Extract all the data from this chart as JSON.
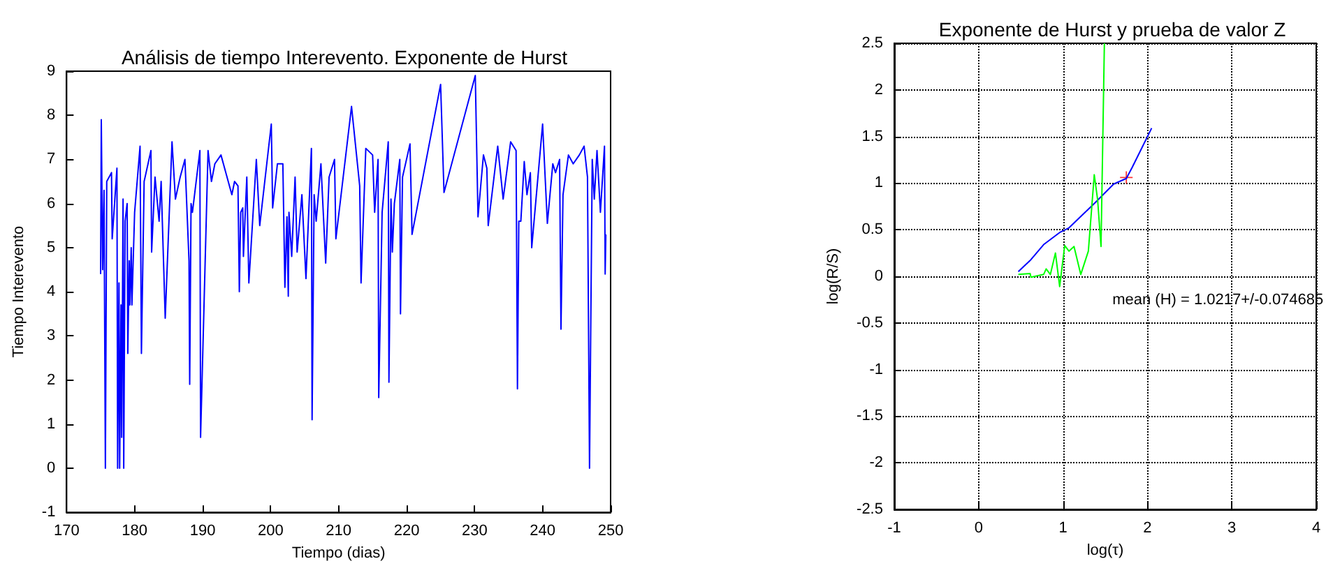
{
  "chart_data": [
    {
      "type": "line",
      "title": "Análisis de tiempo Interevento. Exponente de Hurst",
      "xlabel": "Tiempo (dias)",
      "ylabel": "Tiempo Interevento",
      "xlim": [
        170,
        250
      ],
      "xticks": [
        170,
        180,
        190,
        200,
        210,
        220,
        230,
        240,
        250
      ],
      "ylim": [
        -1,
        9
      ],
      "yticks": [
        -1,
        0,
        1,
        2,
        3,
        4,
        5,
        6,
        7,
        8,
        9
      ],
      "grid": false,
      "series": [
        {
          "color": "#0000ff",
          "x": [
            175.0,
            175.1,
            175.3,
            175.5,
            175.6,
            175.7,
            175.9,
            176.6,
            176.7,
            177.4,
            177.5,
            177.7,
            177.8,
            178.0,
            178.1,
            178.3,
            178.4,
            178.6,
            178.9,
            179.0,
            179.2,
            179.3,
            179.5,
            179.6,
            180.0,
            180.8,
            181.0,
            181.4,
            182.4,
            182.5,
            183.0,
            183.6,
            183.9,
            184.5,
            185.5,
            186.0,
            186.7,
            187.4,
            188.0,
            188.1,
            188.3,
            188.5,
            189.6,
            189.7,
            190.8,
            191.3,
            191.8,
            192.7,
            194.3,
            194.7,
            195.2,
            195.4,
            195.6,
            195.9,
            196.0,
            196.5,
            196.8,
            197.9,
            198.4,
            200.1,
            200.3,
            201.0,
            201.8,
            202.1,
            202.4,
            202.6,
            202.7,
            203.1,
            203.6,
            203.9,
            204.6,
            205.2,
            206.0,
            206.1,
            206.4,
            206.7,
            207.4,
            208.1,
            208.6,
            209.4,
            209.6,
            211.9,
            213.1,
            213.3,
            214.0,
            215.0,
            215.3,
            215.8,
            215.9,
            216.4,
            217.3,
            217.4,
            217.7,
            217.9,
            218.2,
            219.0,
            219.1,
            219.4,
            220.5,
            220.8,
            225.0,
            225.5,
            230.1,
            230.5,
            231.3,
            231.8,
            232.0,
            233.4,
            234.2,
            235.3,
            236.1,
            236.3,
            236.5,
            236.8,
            237.3,
            237.7,
            238.2,
            238.4,
            240.0,
            240.7,
            241.5,
            241.9,
            242.5,
            242.7,
            243.0,
            243.8,
            244.5,
            245.4,
            246.1,
            246.6,
            246.9,
            247.3,
            247.6,
            248.0,
            248.5,
            249.1,
            249.2,
            249.3
          ],
          "values": [
            4.4,
            7.9,
            4.5,
            6.3,
            6.3,
            0,
            6.5,
            6.7,
            5.2,
            6.8,
            0,
            4.2,
            0,
            3.7,
            0.7,
            6.1,
            0,
            5.6,
            6.0,
            2.6,
            4.7,
            3.7,
            5.0,
            3.7,
            5.8,
            7.3,
            2.6,
            6.5,
            7.2,
            4.9,
            6.6,
            5.6,
            6.5,
            3.4,
            7.4,
            6.1,
            6.6,
            7.0,
            4.7,
            1.9,
            6.0,
            5.8,
            7.2,
            0.7,
            7.2,
            6.5,
            6.9,
            7.1,
            6.2,
            6.5,
            6.4,
            4.0,
            5.8,
            5.9,
            4.8,
            6.6,
            4.2,
            7.0,
            5.5,
            7.8,
            5.9,
            6.9,
            6.9,
            4.1,
            5.7,
            3.9,
            5.8,
            4.8,
            6.6,
            4.9,
            6.2,
            4.3,
            7.25,
            1.1,
            6.2,
            5.6,
            6.9,
            4.65,
            6.6,
            7.0,
            5.2,
            8.2,
            6.4,
            4.2,
            7.25,
            7.1,
            5.8,
            7.0,
            1.6,
            5.8,
            7.4,
            1.95,
            6.1,
            4.9,
            6.0,
            7.0,
            3.5,
            6.6,
            7.35,
            5.3,
            8.7,
            6.25,
            8.9,
            5.7,
            7.1,
            6.8,
            5.5,
            7.3,
            6.1,
            7.4,
            7.2,
            1.8,
            5.6,
            5.6,
            6.95,
            6.2,
            6.7,
            5.0,
            7.8,
            5.55,
            6.9,
            6.7,
            7.0,
            3.15,
            6.2,
            7.1,
            6.9,
            7.1,
            7.3,
            6.6,
            0,
            7.0,
            6.1,
            7.2,
            5.8,
            7.3,
            4.4,
            5.3
          ]
        }
      ]
    },
    {
      "type": "line",
      "title": "Exponente de Hurst y prueba de valor Z",
      "xlabel": "log(τ)",
      "ylabel": "log(R/S)",
      "xlim": [
        -1,
        4
      ],
      "xticks": [
        -1,
        0,
        1,
        2,
        3,
        4
      ],
      "ylim": [
        -2.5,
        2.5
      ],
      "yticks": [
        -2.5,
        -2,
        -1.5,
        -1,
        -0.5,
        0,
        0.5,
        1,
        1.5,
        2,
        2.5
      ],
      "grid": true,
      "annotations": [
        "mean (H) = 1.0217+/-0.074685"
      ],
      "series": [
        {
          "color": "#0000ff",
          "x": [
            0.47,
            0.61,
            0.77,
            0.96,
            1.07,
            1.38,
            1.6,
            1.75,
            1.82,
            2.05
          ],
          "values": [
            0.05,
            0.17,
            0.34,
            0.47,
            0.52,
            0.79,
            0.99,
            1.05,
            1.17,
            1.59
          ]
        },
        {
          "color": "#00ff00",
          "x": [
            0.47,
            0.61,
            0.62,
            0.77,
            0.8,
            0.85,
            0.91,
            0.96,
            1.02,
            1.07,
            1.13,
            1.21,
            1.3,
            1.37,
            1.41,
            1.45,
            1.49
          ],
          "values": [
            0.02,
            0.03,
            -0.01,
            0.02,
            0.08,
            0.02,
            0.25,
            -0.11,
            0.33,
            0.27,
            0.32,
            0.02,
            0.27,
            1.09,
            0.82,
            0.32,
            2.5
          ]
        },
        {
          "type": "scatter",
          "color": "#ff0000",
          "marker": "cross",
          "x": [
            1.75
          ],
          "values": [
            1.06
          ]
        }
      ]
    }
  ]
}
